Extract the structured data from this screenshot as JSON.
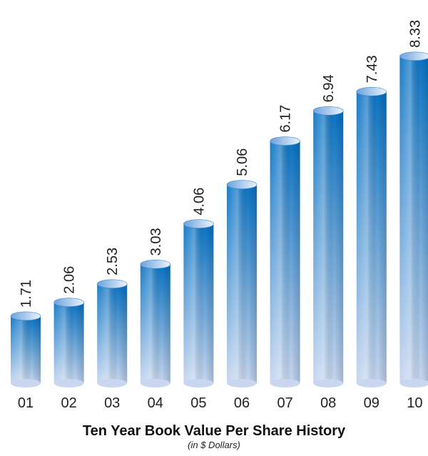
{
  "chart_data": {
    "type": "bar",
    "title": "Ten Year Book Value Per Share History",
    "subtitle": "(in $ Dollars)",
    "categories": [
      "01",
      "02",
      "03",
      "04",
      "05",
      "06",
      "07",
      "08",
      "09",
      "10"
    ],
    "values": [
      1.71,
      2.06,
      2.53,
      3.03,
      4.06,
      5.06,
      6.17,
      6.94,
      7.43,
      8.33
    ],
    "color": "#0a78c8"
  }
}
